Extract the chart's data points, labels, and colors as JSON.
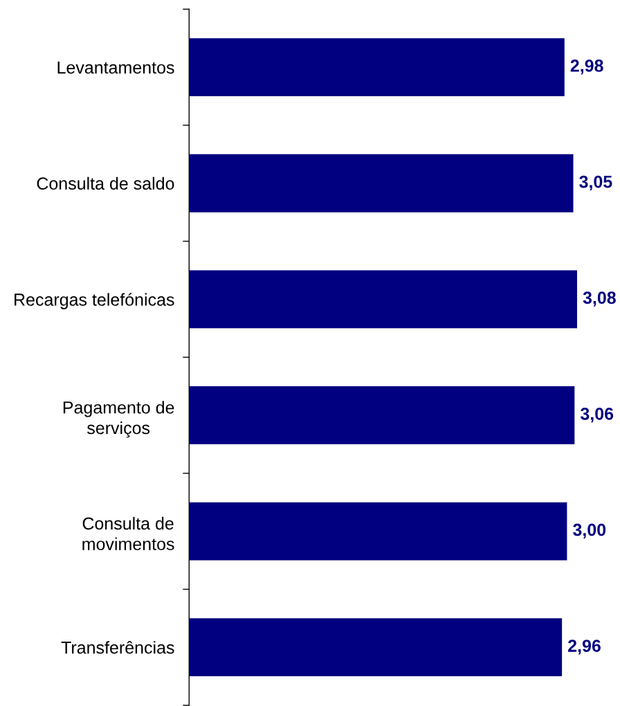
{
  "chart_data": {
    "type": "bar",
    "orientation": "horizontal",
    "categories": [
      "Levantamentos",
      "Consulta de saldo",
      "Recargas telefónicas",
      "Pagamento de\nserviços",
      "Consulta de\nmovimentos",
      "Transferências"
    ],
    "values": [
      2.98,
      3.05,
      3.08,
      3.06,
      3.0,
      2.96
    ],
    "value_labels": [
      "2,98",
      "3,05",
      "3,08",
      "3,06",
      "3,00",
      "2,96"
    ],
    "color": "#000080",
    "tick_labels": "y"
  }
}
